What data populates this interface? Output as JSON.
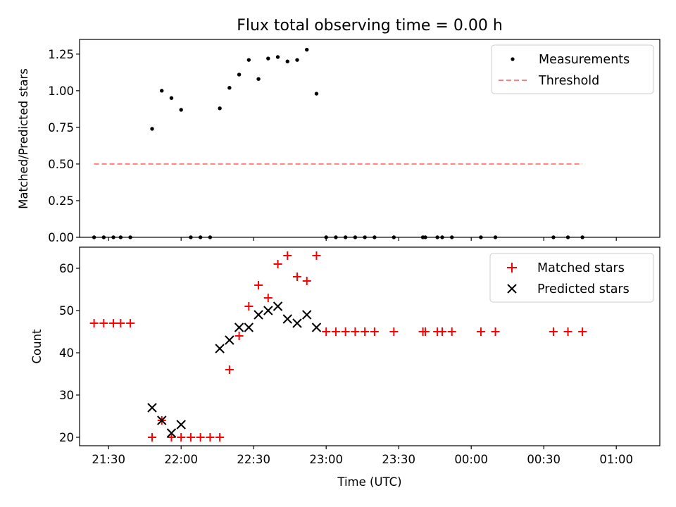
{
  "chart_data": [
    {
      "type": "scatter",
      "title": "Flux total observing time = 0.00 h",
      "xlabel": "",
      "ylabel": "Matched/Predicted stars",
      "xlim": [
        "21:18",
        "01:18"
      ],
      "ylim": [
        0,
        1.35
      ],
      "yticks": [
        "0.00",
        "0.25",
        "0.50",
        "0.75",
        "1.00",
        "1.25"
      ],
      "legend_placement": "upper right",
      "series": [
        {
          "name": "Measurements",
          "kind": "points",
          "color": "#000000",
          "x": [
            "21:24",
            "21:28",
            "21:32",
            "21:35",
            "21:39",
            "21:48",
            "21:52",
            "21:56",
            "22:00",
            "22:04",
            "22:08",
            "22:12",
            "22:16",
            "22:20",
            "22:24",
            "22:28",
            "22:32",
            "22:36",
            "22:40",
            "22:44",
            "22:48",
            "22:52",
            "22:56",
            "23:00",
            "23:04",
            "23:08",
            "23:12",
            "23:16",
            "23:20",
            "23:28",
            "23:40",
            "23:41",
            "23:46",
            "23:48",
            "23:52",
            "24:04",
            "24:10",
            "24:34",
            "24:40",
            "24:46"
          ],
          "y": [
            0,
            0,
            0,
            0,
            0,
            0.74,
            1.0,
            0.95,
            0.87,
            0,
            0,
            0,
            0.88,
            1.02,
            1.11,
            1.21,
            1.08,
            1.22,
            1.23,
            1.2,
            1.21,
            1.28,
            0.98,
            0,
            0,
            0,
            0,
            0,
            0,
            0,
            0,
            0,
            0,
            0,
            0,
            0,
            0,
            0,
            0,
            0
          ]
        },
        {
          "name": "Threshold",
          "kind": "dashed-line",
          "color": "#ff7f7f",
          "x": [
            "21:24",
            "24:46"
          ],
          "y": [
            0.5,
            0.5
          ]
        }
      ]
    },
    {
      "type": "scatter",
      "title": "",
      "xlabel": "Time (UTC)",
      "ylabel": "Count",
      "xlim": [
        "21:18",
        "01:18"
      ],
      "ylim": [
        18,
        65
      ],
      "yticks": [
        "20",
        "30",
        "40",
        "50",
        "60"
      ],
      "xticks": [
        "21:30",
        "22:00",
        "22:30",
        "23:00",
        "23:30",
        "00:00",
        "00:30",
        "01:00"
      ],
      "legend_placement": "upper right",
      "series": [
        {
          "name": "Matched stars",
          "marker": "plus",
          "color": "#ff0000",
          "x": [
            "21:24",
            "21:28",
            "21:32",
            "21:35",
            "21:39",
            "21:48",
            "21:52",
            "21:56",
            "22:00",
            "22:04",
            "22:08",
            "22:12",
            "22:16",
            "22:20",
            "22:24",
            "22:28",
            "22:32",
            "22:36",
            "22:40",
            "22:44",
            "22:48",
            "22:52",
            "22:56",
            "23:00",
            "23:04",
            "23:08",
            "23:12",
            "23:16",
            "23:20",
            "23:28",
            "23:40",
            "23:41",
            "23:46",
            "23:48",
            "23:52",
            "24:04",
            "24:10",
            "24:34",
            "24:40",
            "24:46"
          ],
          "y": [
            47,
            47,
            47,
            47,
            47,
            20,
            24,
            20,
            20,
            20,
            20,
            20,
            20,
            36,
            44,
            51,
            56,
            53,
            61,
            63,
            58,
            57,
            63,
            45,
            45,
            45,
            45,
            45,
            45,
            45,
            45,
            45,
            45,
            45,
            45,
            45,
            45,
            45,
            45,
            45
          ]
        },
        {
          "name": "Predicted stars",
          "marker": "x",
          "color": "#000000",
          "x": [
            "21:48",
            "21:52",
            "21:56",
            "22:00",
            "22:16",
            "22:20",
            "22:24",
            "22:28",
            "22:32",
            "22:36",
            "22:40",
            "22:44",
            "22:48",
            "22:52",
            "22:56"
          ],
          "y": [
            27,
            24,
            21,
            23,
            41,
            43,
            46,
            46,
            49,
            50,
            51,
            48,
            47,
            49,
            46
          ]
        }
      ]
    }
  ]
}
